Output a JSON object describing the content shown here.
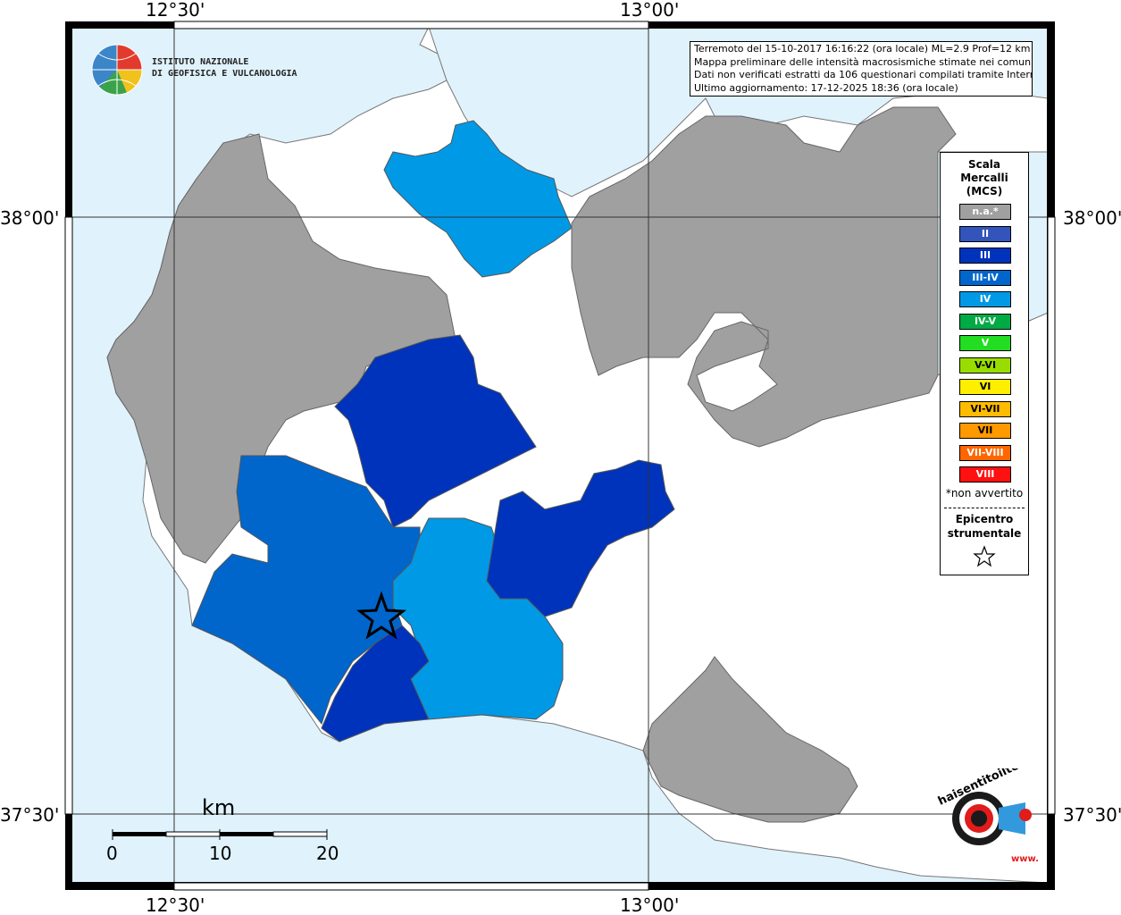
{
  "info_box": {
    "line1": "Terremoto del 15-10-2017 16:16:22 (ora locale) ML=2.9 Prof=12 km",
    "line2": "Mappa preliminare delle intensità macrosismiche stimate nei comuni",
    "line3": "Dati non verificati estratti da 106 questionari compilati tramite Internet.",
    "line4": "Ultimo aggiornamento: 17-12-2025 18:36 (ora locale)"
  },
  "coordinates": {
    "top_left": "12°30'",
    "top_right": "13°00'",
    "bottom_left": "12°30'",
    "bottom_right": "13°00'",
    "left_upper": "38°00'",
    "left_lower": "37°30'",
    "right_upper": "38°00'",
    "right_lower": "37°30'"
  },
  "logo": {
    "line1": "ISTITUTO NAZIONALE",
    "line2": "DI GEOFISICA E VULCANOLOGIA"
  },
  "legend": {
    "title_line1": "Scala",
    "title_line2": "Mercalli",
    "title_line3": "(MCS)",
    "items": [
      {
        "label": "n.a.*",
        "color": "#a0a0a0"
      },
      {
        "label": "II",
        "color": "#3355bb"
      },
      {
        "label": "III",
        "color": "#0033bb"
      },
      {
        "label": "III-IV",
        "color": "#0066cc"
      },
      {
        "label": "IV",
        "color": "#0099e6"
      },
      {
        "label": "IV-V",
        "color": "#00aa44"
      },
      {
        "label": "V",
        "color": "#22dd22"
      },
      {
        "label": "V-VI",
        "color": "#99dd00"
      },
      {
        "label": "VI",
        "color": "#ffee00"
      },
      {
        "label": "VI-VII",
        "color": "#ffbb00"
      },
      {
        "label": "VII",
        "color": "#ff9900"
      },
      {
        "label": "VII-VIII",
        "color": "#ff6600"
      },
      {
        "label": "VIII",
        "color": "#ff1111"
      }
    ],
    "note": "*non avvertito",
    "epicenter_line1": "Epicentro",
    "epicenter_line2": "strumentale"
  },
  "scale": {
    "unit": "km",
    "ticks": [
      "0",
      "10",
      "20"
    ]
  },
  "site_logo": {
    "text": "haisentitoilterremoto.it",
    "www": "www."
  },
  "colors": {
    "sea": "#e0f2fb",
    "land": "#ffffff",
    "na": "#a0a0a0",
    "iii": "#0033bb",
    "iii_iv": "#0066cc",
    "iv": "#0099e6"
  }
}
